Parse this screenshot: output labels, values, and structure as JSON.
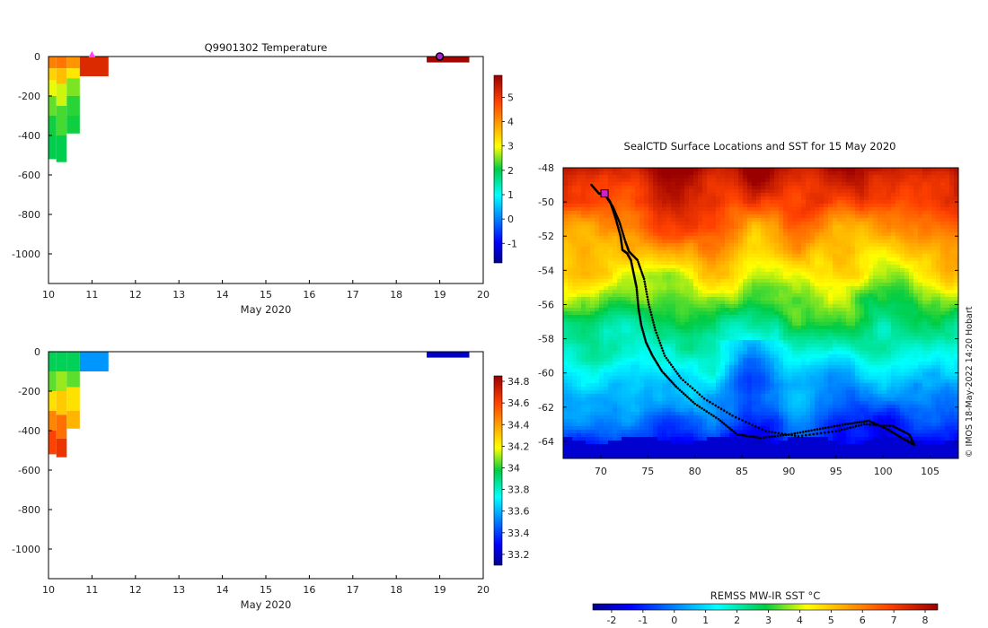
{
  "chart_data": [
    {
      "type": "heatmap",
      "title": "Q9901302  Temperature",
      "xlabel": "May 2020",
      "ylabel": "",
      "xlim": [
        10,
        20
      ],
      "ylim": [
        -1150,
        0
      ],
      "xticks": [
        "10",
        "11",
        "12",
        "13",
        "14",
        "15",
        "16",
        "17",
        "18",
        "19",
        "20"
      ],
      "yticks": [
        "0",
        "-200",
        "-400",
        "-600",
        "-800",
        "-1000"
      ],
      "colorbar": {
        "ticks": [
          "5",
          "4",
          "3",
          "2",
          "1",
          "0",
          "-1"
        ],
        "range": [
          -1.8,
          5.9
        ]
      },
      "profiles": [
        {
          "x0": 10.0,
          "x1": 10.18,
          "bins": [
            [
              0,
              -60,
              4.2
            ],
            [
              -60,
              -120,
              3.4
            ],
            [
              -120,
              -200,
              2.9
            ],
            [
              -200,
              -300,
              2.4
            ],
            [
              -300,
              -400,
              2.1
            ],
            [
              -400,
              -520,
              2.0
            ]
          ]
        },
        {
          "x0": 10.18,
          "x1": 10.42,
          "bins": [
            [
              0,
              -60,
              4.3
            ],
            [
              -60,
              -140,
              3.6
            ],
            [
              -140,
              -250,
              2.8
            ],
            [
              -250,
              -400,
              2.3
            ],
            [
              -400,
              -535,
              2.0
            ]
          ]
        },
        {
          "x0": 10.42,
          "x1": 10.72,
          "bins": [
            [
              0,
              -60,
              4.0
            ],
            [
              -60,
              -110,
              3.2
            ],
            [
              -110,
              -200,
              2.5
            ],
            [
              -200,
              -300,
              2.2
            ],
            [
              -300,
              -390,
              2.1
            ]
          ]
        },
        {
          "x0": 10.72,
          "x1": 11.38,
          "bins": [
            [
              0,
              -100,
              5.2
            ]
          ]
        },
        {
          "x0": 18.7,
          "x1": 19.68,
          "bins": [
            [
              0,
              -30,
              5.8
            ]
          ]
        }
      ],
      "markers": [
        {
          "x": 11.0,
          "y": 0,
          "shape": "triangle",
          "color": "#ff44ff"
        },
        {
          "x": 19.0,
          "y": 0,
          "shape": "circle",
          "color": "#aa22cc"
        }
      ]
    },
    {
      "type": "heatmap",
      "title": "",
      "xlabel": "May 2020",
      "ylabel": "",
      "xlim": [
        10,
        20
      ],
      "ylim": [
        -1150,
        0
      ],
      "xticks": [
        "10",
        "11",
        "12",
        "13",
        "14",
        "15",
        "16",
        "17",
        "18",
        "19",
        "20"
      ],
      "yticks": [
        "0",
        "-200",
        "-400",
        "-600",
        "-800",
        "-1000"
      ],
      "colorbar": {
        "ticks": [
          "34.8",
          "34.6",
          "34.4",
          "34.2",
          "34",
          "33.8",
          "33.6",
          "33.4",
          "33.2"
        ],
        "range": [
          33.1,
          34.85
        ]
      },
      "profiles": [
        {
          "x0": 10.0,
          "x1": 10.18,
          "bins": [
            [
              0,
              -100,
              33.95
            ],
            [
              -100,
              -200,
              34.05
            ],
            [
              -200,
              -300,
              34.25
            ],
            [
              -300,
              -400,
              34.45
            ],
            [
              -400,
              -520,
              34.6
            ]
          ]
        },
        {
          "x0": 10.18,
          "x1": 10.42,
          "bins": [
            [
              0,
              -100,
              33.95
            ],
            [
              -100,
              -200,
              34.1
            ],
            [
              -200,
              -320,
              34.3
            ],
            [
              -320,
              -440,
              34.5
            ],
            [
              -440,
              -535,
              34.65
            ]
          ]
        },
        {
          "x0": 10.42,
          "x1": 10.72,
          "bins": [
            [
              0,
              -100,
              33.95
            ],
            [
              -100,
              -180,
              34.05
            ],
            [
              -180,
              -300,
              34.25
            ],
            [
              -300,
              -390,
              34.35
            ]
          ]
        },
        {
          "x0": 10.72,
          "x1": 11.38,
          "bins": [
            [
              0,
              -100,
              33.55
            ]
          ]
        },
        {
          "x0": 18.7,
          "x1": 19.68,
          "bins": [
            [
              0,
              -30,
              33.2
            ]
          ]
        }
      ]
    },
    {
      "type": "heatmap",
      "title": "SealCTD Surface Locations and SST for 15 May 2020",
      "xlabel": "",
      "ylabel": "",
      "xlim": [
        66,
        108
      ],
      "ylim": [
        -65,
        -48
      ],
      "xticks": [
        "70",
        "75",
        "80",
        "85",
        "90",
        "95",
        "100",
        "105"
      ],
      "yticks": [
        "-48",
        "-50",
        "-52",
        "-54",
        "-56",
        "-58",
        "-60",
        "-62",
        "-64"
      ],
      "colorbar": {
        "label": "REMSS MW-IR SST °C",
        "ticks": [
          "-2",
          "-1",
          "0",
          "1",
          "2",
          "3",
          "4",
          "5",
          "6",
          "7",
          "8"
        ],
        "range": [
          -2.6,
          8.4
        ]
      },
      "track": [
        [
          69.0,
          -49.0
        ],
        [
          69.8,
          -49.5
        ],
        [
          70.5,
          -49.6
        ],
        [
          71.0,
          -50.0
        ],
        [
          71.6,
          -51.0
        ],
        [
          72.1,
          -52.0
        ],
        [
          72.3,
          -52.8
        ],
        [
          72.8,
          -53.0
        ],
        [
          73.2,
          -53.4
        ],
        [
          73.5,
          -54.2
        ],
        [
          73.8,
          -55.0
        ],
        [
          74.0,
          -56.2
        ],
        [
          74.3,
          -57.2
        ],
        [
          74.8,
          -58.2
        ],
        [
          75.5,
          -59.0
        ],
        [
          76.5,
          -59.9
        ],
        [
          78.0,
          -60.8
        ],
        [
          80.0,
          -61.8
        ],
        [
          82.5,
          -62.7
        ],
        [
          84.5,
          -63.6
        ],
        [
          87.0,
          -63.8
        ],
        [
          90.0,
          -63.6
        ],
        [
          93.0,
          -63.3
        ],
        [
          96.0,
          -63.0
        ],
        [
          98.5,
          -62.8
        ],
        [
          100.5,
          -63.3
        ],
        [
          102.0,
          -63.8
        ],
        [
          103.3,
          -64.2
        ],
        [
          102.8,
          -63.6
        ],
        [
          101.0,
          -63.1
        ],
        [
          98.0,
          -63.0
        ],
        [
          95.0,
          -63.4
        ],
        [
          91.0,
          -63.7
        ],
        [
          87.5,
          -63.4
        ],
        [
          84.0,
          -62.5
        ],
        [
          81.0,
          -61.5
        ],
        [
          78.5,
          -60.3
        ],
        [
          76.8,
          -59.0
        ],
        [
          75.8,
          -57.5
        ],
        [
          75.1,
          -56.0
        ],
        [
          74.6,
          -54.5
        ],
        [
          73.9,
          -53.4
        ],
        [
          73.0,
          -52.9
        ],
        [
          72.6,
          -52.3
        ],
        [
          72.0,
          -51.2
        ],
        [
          71.3,
          -50.3
        ],
        [
          70.6,
          -49.7
        ]
      ],
      "markers": [
        {
          "lon": 70.4,
          "lat": -49.5,
          "shape": "square",
          "color": "#cc22cc"
        }
      ]
    }
  ],
  "credit": "© IMOS 18-May-2022 14:20 Hobart",
  "colors": {
    "frame": "#000000",
    "background": "#ffffff"
  }
}
